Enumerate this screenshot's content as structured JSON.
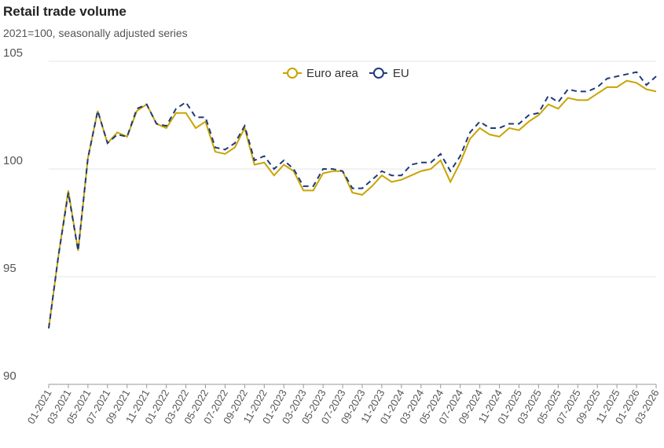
{
  "chart_data": {
    "type": "line",
    "title": "Retail trade volume",
    "subtitle": "2021=100, seasonally adjusted series",
    "categories": [
      "01-2021",
      null,
      "03-2021",
      null,
      "05-2021",
      null,
      "07-2021",
      null,
      "09-2021",
      null,
      "11-2021",
      null,
      "01-2022",
      null,
      "03-2022",
      null,
      "05-2022",
      null,
      "07-2022",
      null,
      "09-2022",
      null,
      "11-2022",
      null,
      "01-2023",
      null,
      "03-2023",
      null,
      "05-2023",
      null,
      "07-2023",
      null,
      "09-2023",
      null,
      "11-2023",
      null,
      "01-2024",
      null,
      "03-2024",
      null,
      "05-2024",
      null,
      "07-2024",
      null,
      "09-2024",
      null,
      "11-2024",
      null,
      "01-2025",
      null,
      "03-2025",
      null,
      "05-2025",
      null,
      "07-2025",
      null,
      "09-2025",
      null,
      "11-2025",
      null,
      "01-2026",
      null,
      "03-2026"
    ],
    "series": [
      {
        "name": "Euro area",
        "color": "#c9a400",
        "dash": false,
        "values": [
          92.6,
          96.0,
          99.0,
          96.2,
          100.5,
          102.7,
          101.2,
          101.7,
          101.5,
          102.7,
          103.0,
          102.1,
          101.9,
          102.6,
          102.6,
          101.9,
          102.2,
          100.8,
          100.7,
          101.0,
          101.9,
          100.2,
          100.3,
          99.7,
          100.2,
          99.9,
          99.0,
          99.0,
          99.8,
          99.9,
          99.9,
          98.9,
          98.8,
          99.2,
          99.7,
          99.4,
          99.5,
          99.7,
          99.9,
          100.0,
          100.4,
          99.4,
          100.3,
          101.4,
          101.9,
          101.6,
          101.5,
          101.9,
          101.8,
          102.2,
          102.5,
          103.0,
          102.8,
          103.3,
          103.2,
          103.2,
          103.5,
          103.8,
          103.8,
          104.1,
          104.0,
          103.7,
          103.6
        ]
      },
      {
        "name": "EU",
        "color": "#1f3a7a",
        "dash": true,
        "values": [
          92.6,
          96.0,
          98.9,
          96.2,
          100.5,
          102.7,
          101.2,
          101.6,
          101.5,
          102.8,
          103.0,
          102.1,
          102.0,
          102.8,
          103.1,
          102.4,
          102.4,
          101.0,
          100.9,
          101.2,
          102.0,
          100.4,
          100.6,
          100.0,
          100.4,
          100.0,
          99.2,
          99.2,
          100.0,
          100.0,
          99.9,
          99.1,
          99.1,
          99.5,
          99.9,
          99.7,
          99.7,
          100.2,
          100.3,
          100.3,
          100.7,
          99.9,
          100.6,
          101.7,
          102.2,
          101.9,
          101.9,
          102.1,
          102.1,
          102.5,
          102.6,
          103.4,
          103.1,
          103.7,
          103.6,
          103.6,
          103.8,
          104.2,
          104.3,
          104.4,
          104.5,
          103.9,
          104.3
        ]
      }
    ],
    "ylim": [
      90,
      105
    ],
    "yticks": [
      90,
      95,
      100,
      105
    ],
    "grid": true
  }
}
